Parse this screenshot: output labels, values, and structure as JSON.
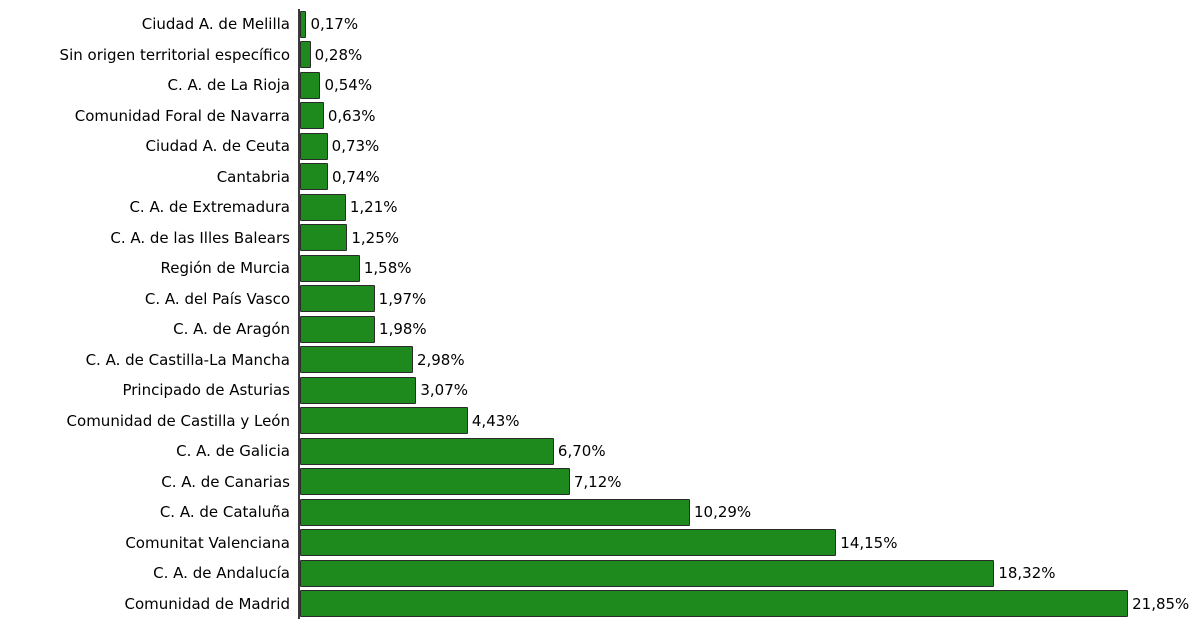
{
  "chart_data": {
    "type": "bar",
    "orientation": "horizontal",
    "title": "",
    "xlabel": "",
    "ylabel": "",
    "grid": false,
    "legend": false,
    "xlim": [
      0,
      23.5
    ],
    "bar_color": "#1e8a1e",
    "bar_border_color": "#2b2b2b",
    "axis_color": "#3a3a3a",
    "categories": [
      "Ciudad A. de Melilla",
      "Sin origen territorial específico",
      "C. A. de La Rioja",
      "Comunidad Foral de Navarra",
      "Ciudad A. de Ceuta",
      "Cantabria",
      "C. A. de Extremadura",
      "C. A. de las Illes Balears",
      "Región de Murcia",
      "C. A. del País Vasco",
      "C. A. de Aragón",
      "C. A. de Castilla-La Mancha",
      "Principado de Asturias",
      "Comunidad de Castilla y León",
      "C. A. de Galicia",
      "C. A. de Canarias",
      "C. A. de Cataluña",
      "Comunitat Valenciana",
      "C. A. de Andalucía",
      "Comunidad de Madrid"
    ],
    "values": [
      0.17,
      0.28,
      0.54,
      0.63,
      0.73,
      0.74,
      1.21,
      1.25,
      1.58,
      1.97,
      1.98,
      2.98,
      3.07,
      4.43,
      6.7,
      7.12,
      10.29,
      14.15,
      18.32,
      21.85
    ],
    "value_labels": [
      "0,17%",
      "0,28%",
      "0,54%",
      "0,63%",
      "0,73%",
      "0,74%",
      "1,21%",
      "1,25%",
      "1,58%",
      "1,97%",
      "1,98%",
      "2,98%",
      "3,07%",
      "4,43%",
      "6,70%",
      "7,12%",
      "10,29%",
      "14,15%",
      "18,32%",
      "21,85%"
    ]
  }
}
